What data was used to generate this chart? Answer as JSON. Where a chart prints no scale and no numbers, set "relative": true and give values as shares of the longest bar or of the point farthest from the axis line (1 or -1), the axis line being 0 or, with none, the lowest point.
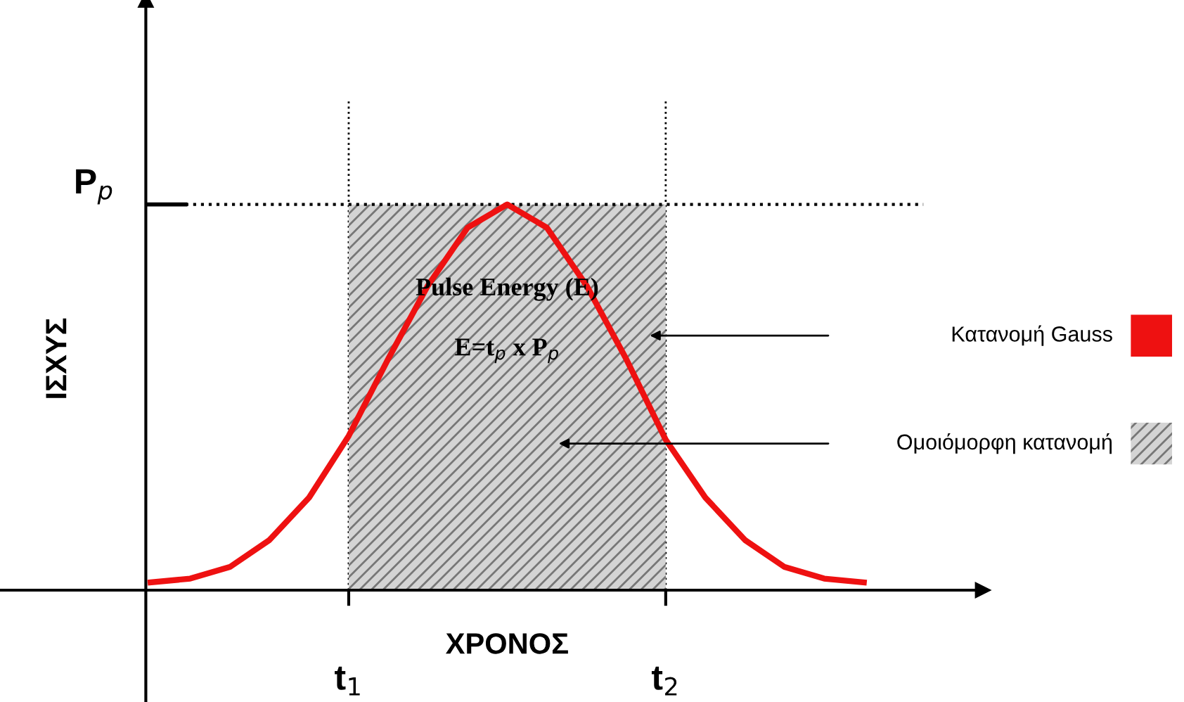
{
  "chart_data": {
    "type": "line",
    "relative": true,
    "xlabel": "ΧΡΟΝΟΣ",
    "ylabel": "ΙΣΧΥΣ",
    "tick_labels": "x",
    "legend": "right",
    "grid": "x",
    "marker": "none",
    "line_style": "solid",
    "categories": [
      null,
      null,
      null,
      null,
      null,
      "t$_{1}$",
      null,
      null,
      null,
      null,
      null,
      null,
      null,
      "t$_{2}$",
      null,
      null,
      null,
      null,
      null
    ],
    "series": [
      {
        "name": "Κατανομή Gauss",
        "color": "#ee1111",
        "values": [
          0.02,
          0.03,
          0.06,
          0.13,
          0.24,
          0.4,
          0.6,
          0.79,
          0.94,
          1.0,
          0.94,
          0.79,
          0.6,
          0.39,
          0.24,
          0.13,
          0.06,
          0.03,
          0.02
        ]
      },
      {
        "name": "Ομοιόμορφη κατανομή",
        "color": "#d4d4d4",
        "type": "area",
        "values": [
          null,
          null,
          null,
          null,
          null,
          1.0,
          1.0,
          1.0,
          1.0,
          1.0,
          1.0,
          1.0,
          1.0,
          1.0,
          null,
          null,
          null,
          null,
          null
        ]
      }
    ],
    "ref_lines": [
      {
        "axis": "y",
        "value": 1.0,
        "label": "P$_{p}$",
        "line_style": "dotted"
      }
    ],
    "annotations": [
      "Pulse Energy (E)",
      "E=t$_{p}$ x P$_{p}$"
    ]
  }
}
